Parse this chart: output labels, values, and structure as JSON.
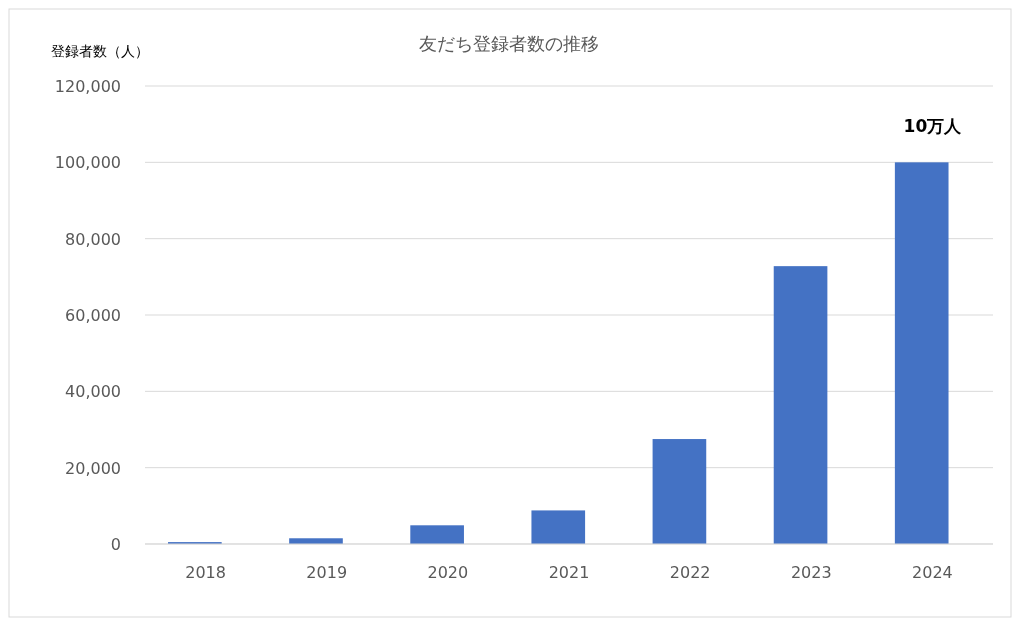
{
  "chart_data": {
    "type": "bar",
    "title": "友だち登録者数の推移",
    "ylabel": "登録者数（人）",
    "categories": [
      "2018",
      "2019",
      "2020",
      "2021",
      "2022",
      "2023",
      "2024"
    ],
    "values": [
      500,
      1500,
      4900,
      8800,
      27500,
      72800,
      100000
    ],
    "color": "#4472c4",
    "ylim": [
      0,
      120000
    ],
    "yticks": [
      {
        "value": 0,
        "label": "0"
      },
      {
        "value": 20000,
        "label": "20,000"
      },
      {
        "value": 40000,
        "label": "40,000"
      },
      {
        "value": 60000,
        "label": "60,000"
      },
      {
        "value": 80000,
        "label": "80,000"
      },
      {
        "value": 100000,
        "label": "100,000"
      },
      {
        "value": 120000,
        "label": "120,000"
      }
    ],
    "grid": "y",
    "annotations": [
      {
        "text": "10万人",
        "x": "2024",
        "y": 100000
      }
    ]
  }
}
